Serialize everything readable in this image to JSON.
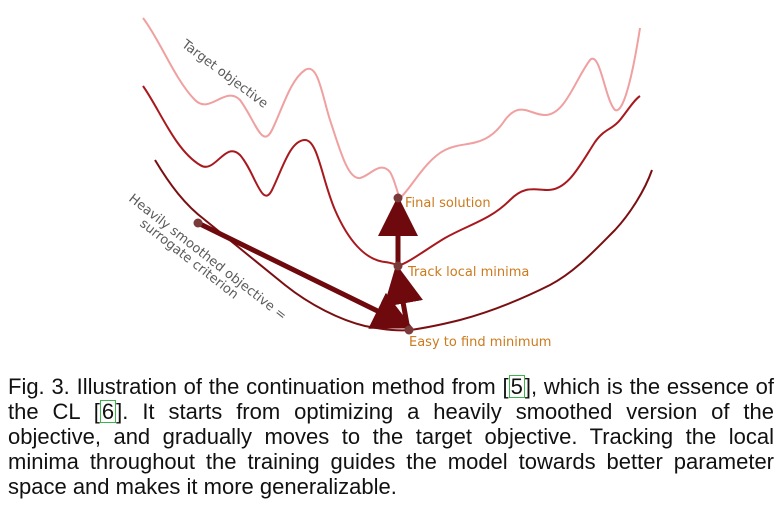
{
  "figure": {
    "curve_labels": {
      "target": "Target objective",
      "smoothed_line1": "Heavily smoothed objective =",
      "smoothed_line2": "surrogate criterion"
    },
    "point_labels": {
      "final": "Final solution",
      "track": "Track local minima",
      "easy": "Easy to find minimum"
    },
    "colors": {
      "target_curve": "#f0a0a0",
      "middle_curve": "#a8191e",
      "smoothed_curve": "#7a0f12",
      "arrow": "#6e0a0e",
      "point": "#7a3a3a",
      "label_orange": "#cc7a1c"
    }
  },
  "caption": {
    "part1": "Fig. 3. Illustration of the continuation method from ",
    "ref1": "5",
    "part2": ", which is the essence of the CL ",
    "ref2": "6",
    "part3": ". It starts from optimizing a heavily smoothed version of the objective, and gradually moves to the target objective. Tracking the local minima throughout the training guides the model towards better parameter space and makes it more generalizable."
  }
}
